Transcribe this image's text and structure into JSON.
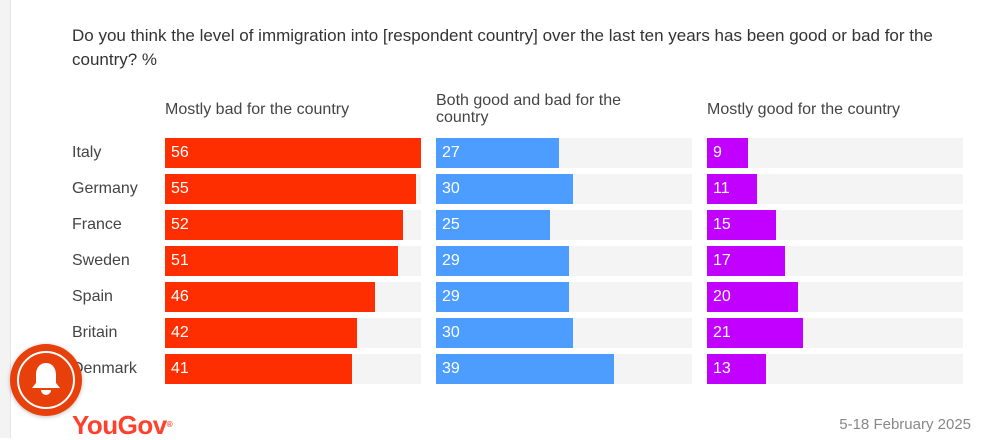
{
  "chart_data": {
    "type": "bar",
    "orientation": "horizontal",
    "title": "Do you think the level of immigration into [respondent country] over the last ten years has been good or bad for the country? %",
    "categories": [
      "Italy",
      "Germany",
      "France",
      "Sweden",
      "Spain",
      "Britain",
      "Denmark"
    ],
    "series": [
      {
        "name": "Mostly bad for the country",
        "color": "#ff2e00",
        "values": [
          56,
          55,
          52,
          51,
          46,
          42,
          41
        ]
      },
      {
        "name": "Both good and bad for the country",
        "color": "#4c9dff",
        "values": [
          27,
          30,
          25,
          29,
          29,
          30,
          39
        ]
      },
      {
        "name": "Mostly good for the country",
        "color": "#c100ff",
        "values": [
          9,
          11,
          15,
          17,
          20,
          21,
          13
        ]
      }
    ],
    "xlim": [
      0,
      56
    ],
    "xlabel": "",
    "ylabel": "",
    "grid": false,
    "layout": "small-multiples"
  },
  "footer": {
    "brand": "YouGov",
    "date": "5-18 February 2025"
  },
  "overlay": {
    "notification_icon": "bell-icon"
  }
}
